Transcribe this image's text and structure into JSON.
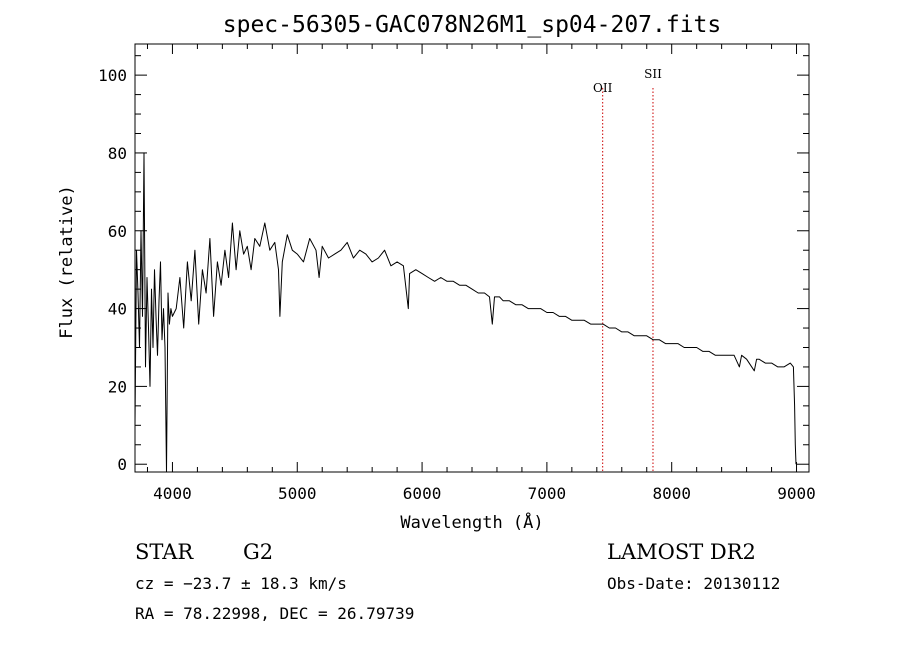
{
  "chart_data": {
    "type": "line",
    "title": "spec-56305-GAC078N26M1_sp04-207.fits",
    "xlabel": "Wavelength (Å)",
    "ylabel": "Flux (relative)",
    "xlim": [
      3700,
      9100
    ],
    "ylim": [
      -2,
      108
    ],
    "xticks": [
      4000,
      5000,
      6000,
      7000,
      8000,
      9000
    ],
    "yticks": [
      0,
      20,
      40,
      60,
      80,
      100
    ],
    "grid": false,
    "lines": [
      {
        "label": "OII",
        "x": 7447,
        "color": "#cc0000"
      },
      {
        "label": "SII",
        "x": 7850,
        "color": "#cc0000"
      }
    ],
    "series": [
      {
        "x": [
          3700,
          3712,
          3724,
          3736,
          3748,
          3760,
          3772,
          3784,
          3796,
          3808,
          3820,
          3832,
          3844,
          3856,
          3868,
          3880,
          3892,
          3904,
          3916,
          3928,
          3940,
          3952,
          3964,
          3976,
          3988,
          4000,
          4030,
          4060,
          4090,
          4120,
          4150,
          4180,
          4210,
          4240,
          4270,
          4300,
          4330,
          4360,
          4390,
          4420,
          4450,
          4480,
          4510,
          4540,
          4570,
          4600,
          4630,
          4660,
          4700,
          4740,
          4780,
          4820,
          4850,
          4861,
          4880,
          4920,
          4960,
          5000,
          5050,
          5100,
          5150,
          5175,
          5200,
          5250,
          5300,
          5350,
          5400,
          5450,
          5500,
          5550,
          5600,
          5650,
          5700,
          5750,
          5800,
          5850,
          5890,
          5900,
          5950,
          6000,
          6050,
          6100,
          6150,
          6200,
          6250,
          6300,
          6350,
          6400,
          6450,
          6500,
          6540,
          6563,
          6580,
          6620,
          6650,
          6700,
          6750,
          6800,
          6850,
          6900,
          6950,
          7000,
          7050,
          7100,
          7150,
          7200,
          7250,
          7300,
          7350,
          7400,
          7450,
          7500,
          7550,
          7600,
          7650,
          7700,
          7750,
          7800,
          7850,
          7900,
          7950,
          8000,
          8050,
          8100,
          8150,
          8200,
          8250,
          8300,
          8350,
          8400,
          8450,
          8500,
          8542,
          8560,
          8600,
          8662,
          8680,
          8700,
          8750,
          8800,
          8850,
          8900,
          8950,
          8975,
          8985,
          8990,
          8996
        ],
        "y": [
          10,
          55,
          44,
          30,
          60,
          38,
          80,
          25,
          48,
          35,
          20,
          45,
          30,
          50,
          38,
          28,
          42,
          52,
          32,
          40,
          30,
          -2,
          44,
          36,
          40,
          38,
          40,
          48,
          35,
          52,
          42,
          55,
          36,
          50,
          44,
          58,
          38,
          52,
          46,
          55,
          48,
          62,
          50,
          60,
          54,
          56,
          50,
          58,
          56,
          62,
          55,
          57,
          50,
          38,
          52,
          59,
          55,
          54,
          52,
          58,
          55,
          48,
          56,
          53,
          54,
          55,
          57,
          53,
          55,
          54,
          52,
          53,
          55,
          51,
          52,
          51,
          40,
          49,
          50,
          49,
          48,
          47,
          48,
          47,
          47,
          46,
          46,
          45,
          44,
          44,
          43,
          36,
          43,
          43,
          42,
          42,
          41,
          41,
          40,
          40,
          40,
          39,
          39,
          38,
          38,
          37,
          37,
          37,
          36,
          36,
          36,
          35,
          35,
          34,
          34,
          33,
          33,
          33,
          32,
          32,
          31,
          31,
          31,
          30,
          30,
          30,
          29,
          29,
          28,
          28,
          28,
          28,
          25,
          28,
          27,
          24,
          27,
          27,
          26,
          26,
          25,
          25,
          26,
          25,
          15,
          5,
          0
        ]
      }
    ]
  },
  "info": {
    "object_class": "STAR",
    "subclass": "G2",
    "survey": "LAMOST DR2",
    "cz": "cz = −23.7 ± 18.3 km/s",
    "obs_date": "Obs-Date: 20130112",
    "coords": "RA =  78.22998, DEC =  26.79739"
  }
}
